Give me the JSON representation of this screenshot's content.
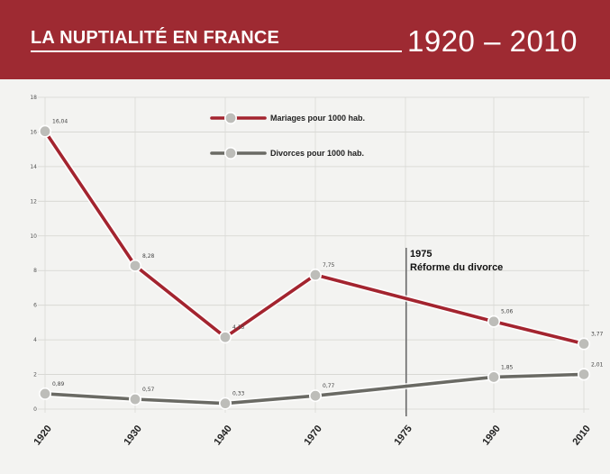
{
  "header": {
    "title": "LA NUPTIALITÉ EN FRANCE",
    "years": "1920 – 2010"
  },
  "colors": {
    "banner": "#9e2a32",
    "marriages": "#a3242f",
    "divorces": "#6a6a64",
    "marker": "#a8a8a4"
  },
  "chart_data": {
    "type": "line",
    "title": "LA NUPTIALITÉ EN FRANCE 1920 – 2010",
    "x": [
      "1920",
      "1930",
      "1940",
      "1970",
      "1975",
      "1990",
      "2010"
    ],
    "ylim": [
      0,
      18
    ],
    "yticks": [
      "0",
      "2",
      "4",
      "6",
      "8",
      "10",
      "12",
      "14",
      "16",
      "18"
    ],
    "series": [
      {
        "name": "Mariages pour 1000 hab.",
        "values": [
          16.04,
          8.28,
          4.15,
          7.75,
          null,
          5.06,
          3.77
        ],
        "labels": [
          "16,04",
          "8,28",
          "4,15",
          "7,75",
          "",
          "5,06",
          "3,77"
        ]
      },
      {
        "name": "Divorces pour 1000 hab.",
        "values": [
          0.89,
          0.57,
          0.33,
          0.77,
          null,
          1.85,
          2.01
        ],
        "labels": [
          "0,89",
          "0,57",
          "0,33",
          "0,77",
          "",
          "1,85",
          "2,01"
        ]
      }
    ],
    "annotation": {
      "year": "1975",
      "label": "Réforme du divorce"
    },
    "grid": true,
    "legend": "top-center"
  }
}
